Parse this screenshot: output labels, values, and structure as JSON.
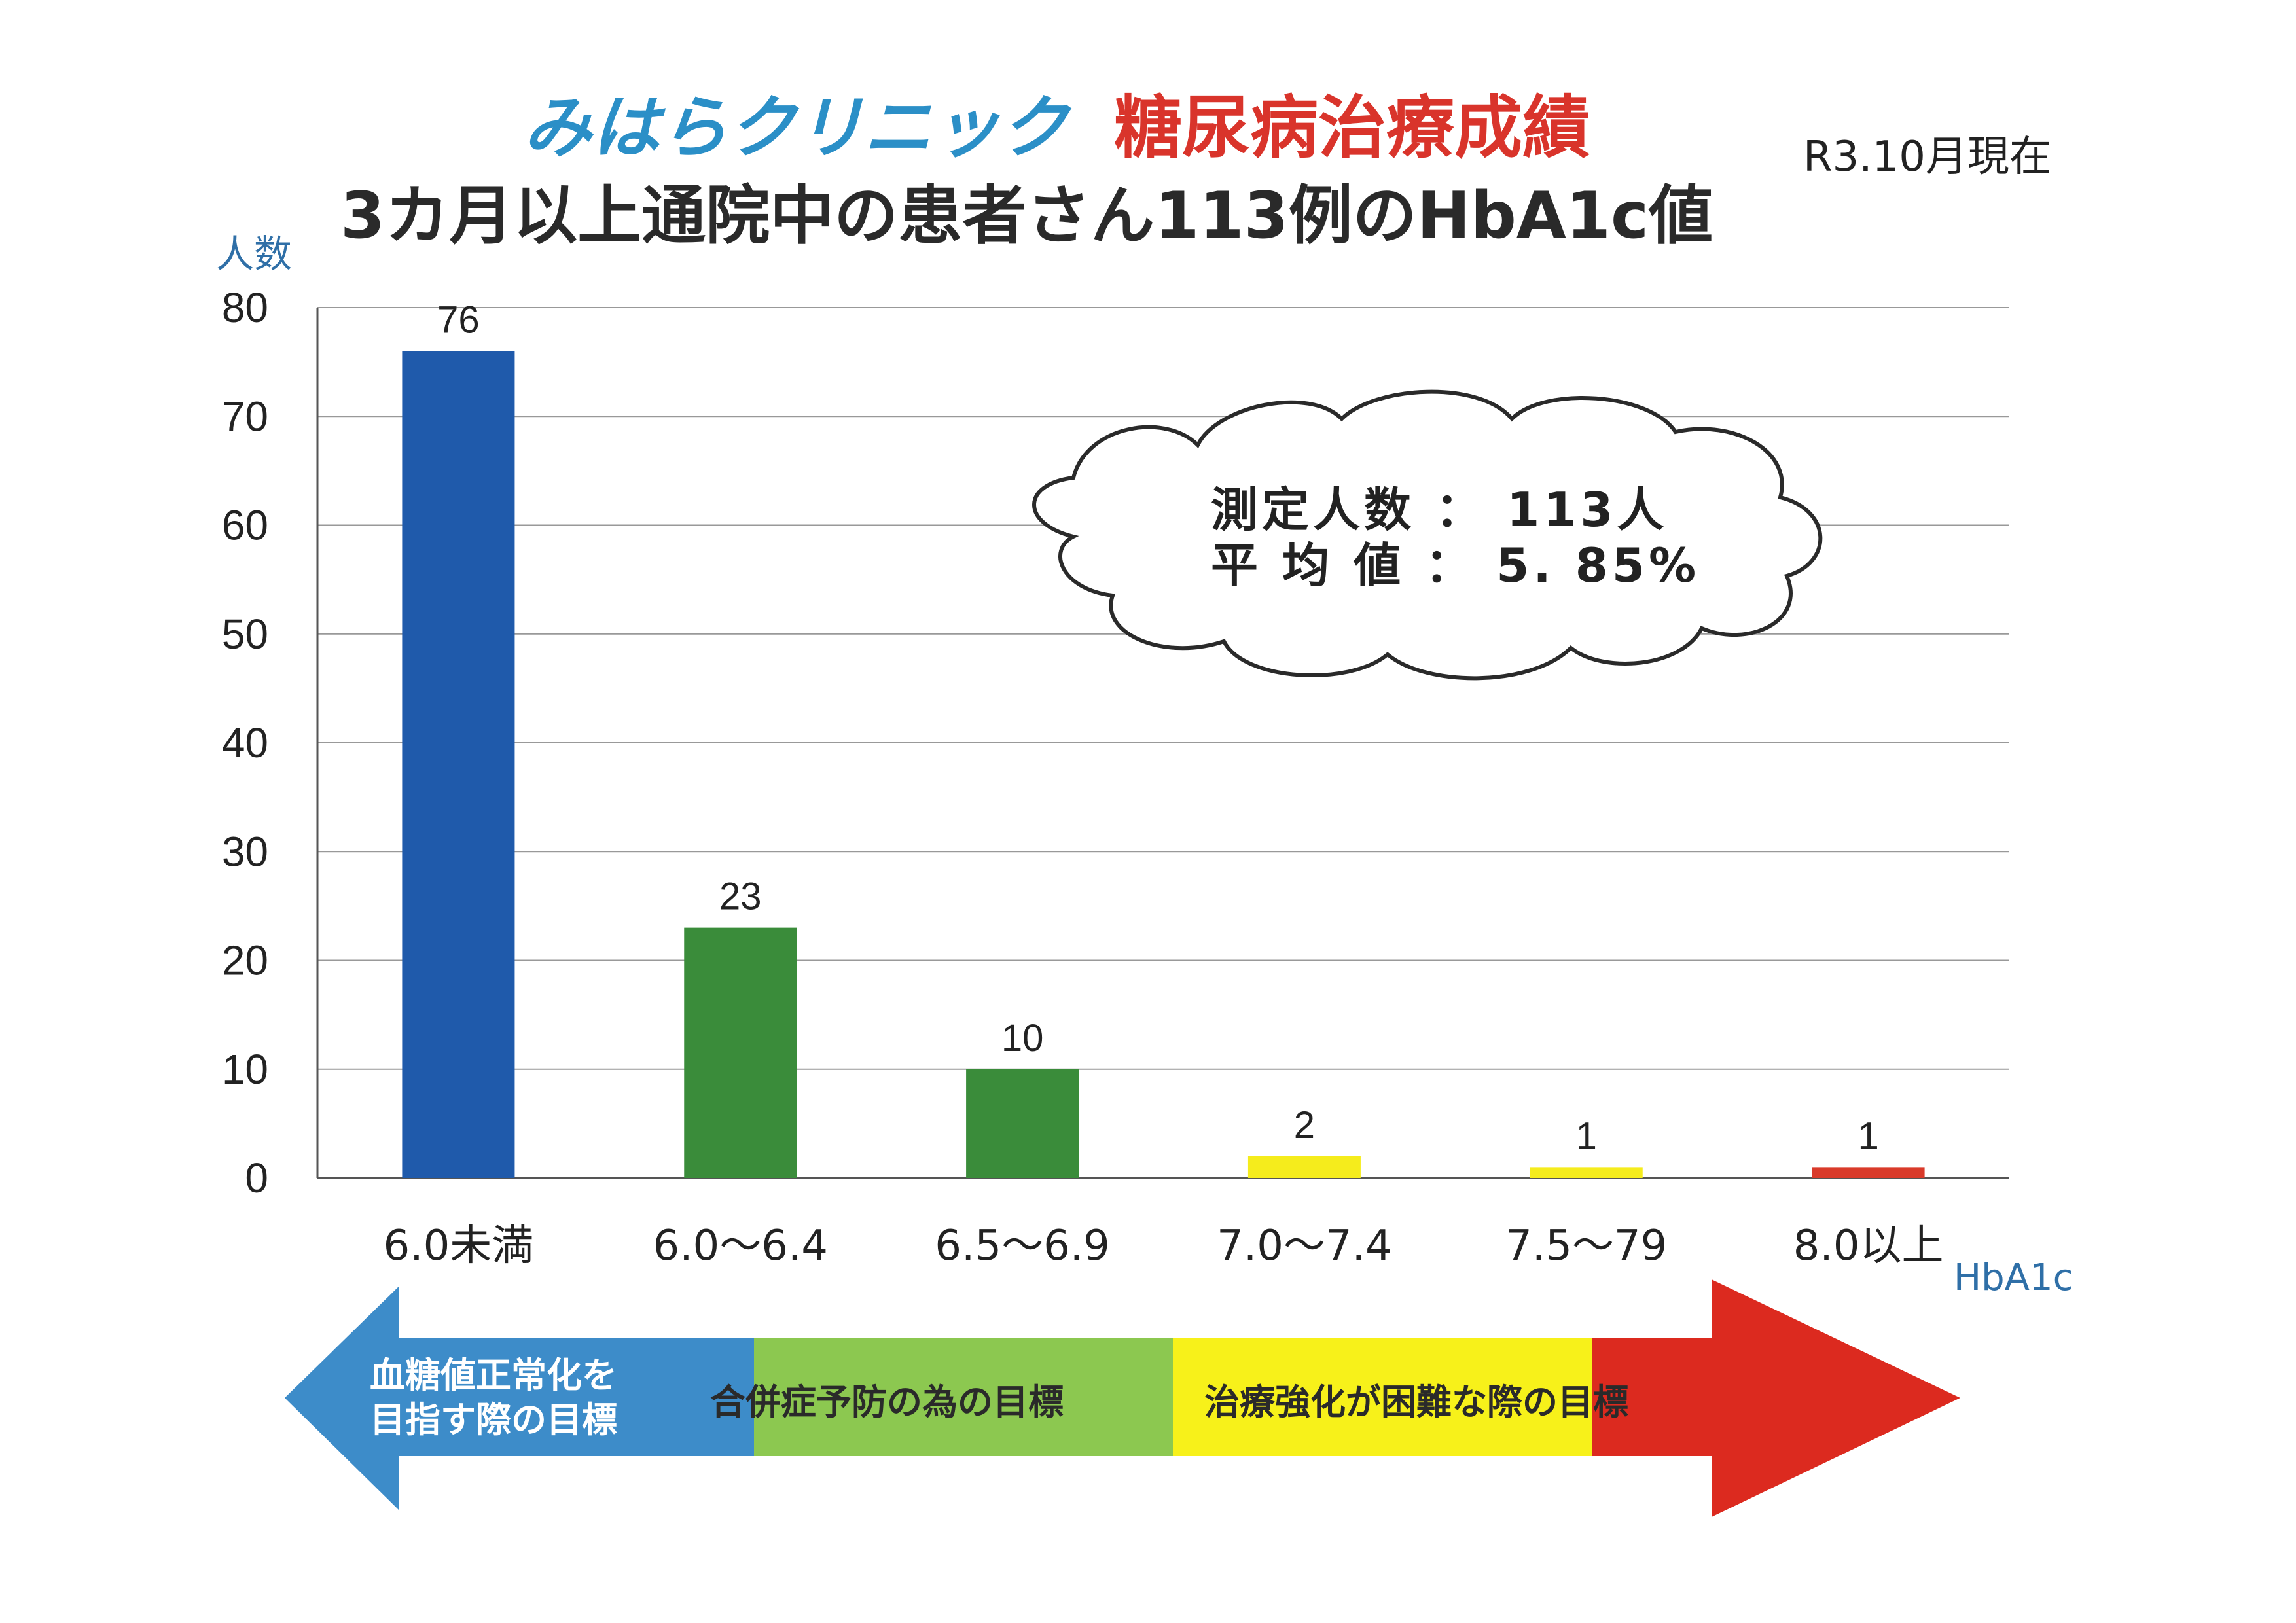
{
  "header": {
    "clinic_name": "みはらクリニック",
    "results_title": "糖尿病治療成績",
    "subtitle": "3カ月以上通院中の患者さん113例のHbA1c値",
    "as_of": "R3.10月現在"
  },
  "cloud": {
    "line1": "測定人数 ： 113人",
    "line2": "平 均 値 ： 5. 85%"
  },
  "arrow": {
    "left_line1": "血糖値正常化を",
    "left_line2": "目指す際の目標",
    "middle": "合併症予防の為の目標",
    "right": "治療強化が困難な際の目標"
  },
  "chart_data": {
    "type": "bar",
    "ylabel": "人数",
    "xlabel": "HbA1c",
    "ylim": [
      0,
      80
    ],
    "yticks": [
      0,
      10,
      20,
      30,
      40,
      50,
      60,
      70,
      80
    ],
    "grid": true,
    "categories": [
      "6.0未満",
      "6.0～6.4",
      "6.5～6.9",
      "7.0～7.4",
      "7.5～79",
      "8.0以上"
    ],
    "values": [
      76,
      23,
      10,
      2,
      1,
      1
    ],
    "data_labels": [
      "76",
      "23",
      "10",
      "2",
      "1",
      "1"
    ],
    "bar_colors": [
      "#1f5aab",
      "#3a8c3a",
      "#3a8c3a",
      "#f5ec1c",
      "#f5ec1c",
      "#d93a2a"
    ]
  },
  "colors": {
    "clinic": "#2b8fc7",
    "results": "#d9342b",
    "arrow_blue": "#3d8cc9",
    "arrow_green": "#8cc850",
    "arrow_yellow": "#f7f11a",
    "arrow_red": "#dc2a1f"
  }
}
